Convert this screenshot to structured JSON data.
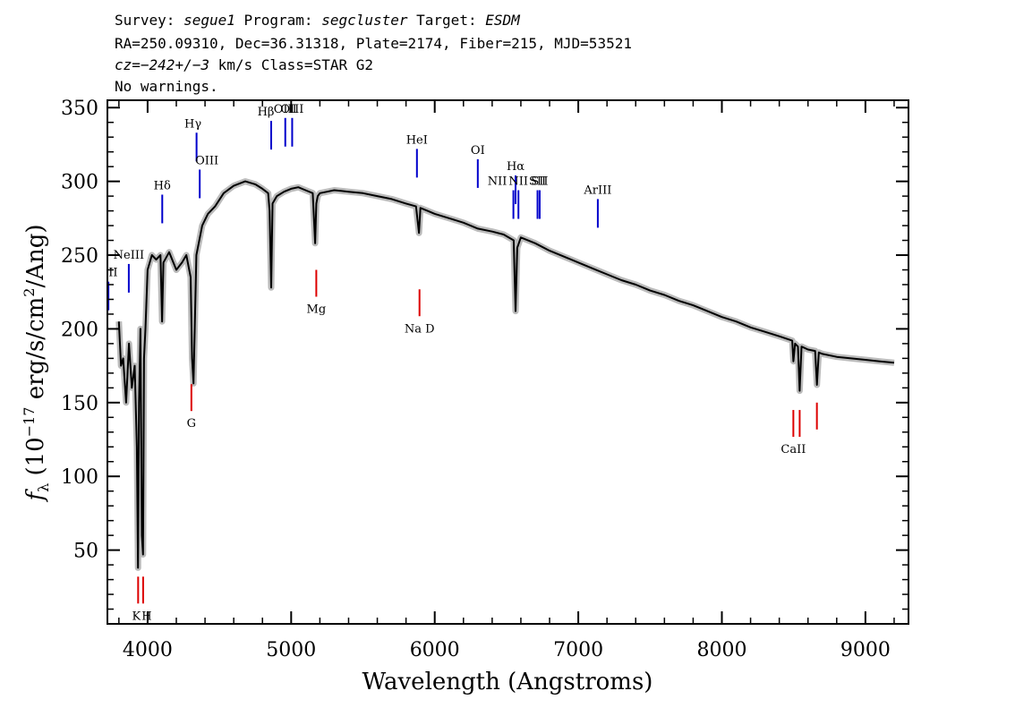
{
  "header": {
    "line1": [
      {
        "text": "Survey: ",
        "italic": false
      },
      {
        "text": "segue1",
        "italic": true
      },
      {
        "text": " Program: ",
        "italic": false
      },
      {
        "text": "segcluster",
        "italic": true
      },
      {
        "text": " Target: ",
        "italic": false
      },
      {
        "text": "ESDM",
        "italic": true
      }
    ],
    "line2": "RA=250.09310, Dec=36.31318, Plate=2174, Fiber=215, MJD=53521",
    "line3": [
      {
        "text": "cz=",
        "italic": true
      },
      {
        "text": "−242+/−3",
        "italic": true
      },
      {
        "text": " km/s Class=STAR G2",
        "italic": false
      }
    ],
    "line4": "No warnings."
  },
  "colors": {
    "emission": "#0000cc",
    "absorption": "#dd0000",
    "spectrum": "#000000",
    "error_band": "#bbbbbb"
  },
  "chart_data": {
    "type": "line",
    "xlabel": "Wavelength (Angstroms)",
    "ylabel_parts": {
      "f": "f",
      "sub": "λ",
      "pre": " (10",
      "exp1": "−17",
      "mid": " erg/s/cm",
      "exp2": "2",
      "post": "/Ang)"
    },
    "xlim": [
      3720,
      9300
    ],
    "ylim": [
      0,
      355
    ],
    "x_ticks": [
      4000,
      5000,
      6000,
      7000,
      8000,
      9000
    ],
    "y_ticks": [
      50,
      100,
      150,
      200,
      250,
      300,
      350
    ],
    "series": [
      {
        "x": [
          3800,
          3815,
          3830,
          3850,
          3870,
          3890,
          3910,
          3925,
          3933,
          3940,
          3950,
          3960,
          3968,
          3975,
          3985,
          4000,
          4030,
          4060,
          4090,
          4101,
          4110,
          4150,
          4200,
          4240,
          4270,
          4300,
          4310,
          4320,
          4340,
          4380,
          4420,
          4470,
          4530,
          4600,
          4680,
          4750,
          4800,
          4840,
          4850,
          4861,
          4870,
          4900,
          4950,
          5000,
          5050,
          5100,
          5150,
          5167,
          5175,
          5185,
          5200,
          5250,
          5300,
          5400,
          5500,
          5600,
          5700,
          5800,
          5870,
          5890,
          5900,
          5950,
          6000,
          6100,
          6200,
          6300,
          6400,
          6480,
          6550,
          6563,
          6575,
          6600,
          6700,
          6800,
          6900,
          7000,
          7100,
          7200,
          7300,
          7400,
          7500,
          7600,
          7700,
          7800,
          7900,
          8000,
          8100,
          8200,
          8300,
          8400,
          8490,
          8498,
          8510,
          8530,
          8542,
          8555,
          8600,
          8650,
          8662,
          8675,
          8700,
          8800,
          8900,
          9000,
          9100,
          9200
        ],
        "y": [
          205,
          175,
          180,
          150,
          190,
          160,
          175,
          120,
          38,
          150,
          200,
          60,
          47,
          180,
          200,
          240,
          250,
          247,
          250,
          205,
          245,
          252,
          240,
          245,
          250,
          235,
          180,
          163,
          250,
          270,
          278,
          283,
          292,
          297,
          300,
          298,
          295,
          292,
          280,
          228,
          285,
          290,
          293,
          295,
          296,
          294,
          292,
          258,
          285,
          290,
          292,
          293,
          294,
          293,
          292,
          290,
          288,
          285,
          283,
          265,
          282,
          280,
          278,
          275,
          272,
          268,
          266,
          264,
          260,
          212,
          255,
          262,
          258,
          253,
          249,
          245,
          241,
          237,
          233,
          230,
          226,
          223,
          219,
          216,
          212,
          208,
          205,
          201,
          198,
          195,
          192,
          178,
          190,
          188,
          158,
          188,
          186,
          185,
          162,
          184,
          183,
          181,
          180,
          179,
          178,
          177
        ]
      }
    ],
    "emission_lines": [
      {
        "label": "OII",
        "x": 3727,
        "y": 232,
        "label_dx": 0
      },
      {
        "label": "NeIII",
        "x": 3869,
        "y": 244,
        "label_dx": 0
      },
      {
        "label": "Hδ",
        "x": 4102,
        "y": 291,
        "label_dx": 0
      },
      {
        "label": "Hγ",
        "x": 4341,
        "y": 333,
        "label_dx": -4
      },
      {
        "label": "OIII",
        "x": 4363,
        "y": 308,
        "label_dx": 8
      },
      {
        "label": "Hβ",
        "x": 4861,
        "y": 341,
        "label_dx": -6
      },
      {
        "label": "OIII",
        "x": 4959,
        "y": 343,
        "label_dx": 0
      },
      {
        "label": "OIII",
        "x": 5007,
        "y": 343,
        "label_dx": 0
      },
      {
        "label": "HeI",
        "x": 5876,
        "y": 322,
        "label_dx": 0
      },
      {
        "label": "OI",
        "x": 6300,
        "y": 315,
        "label_dx": 0
      },
      {
        "label": "NII",
        "x": 6548,
        "y": 294,
        "label_dx": -18
      },
      {
        "label": "Hα",
        "x": 6563,
        "y": 304,
        "label_dx": 0
      },
      {
        "label": "NII",
        "x": 6583,
        "y": 294,
        "label_dx": 0
      },
      {
        "label": "SII",
        "x": 6716,
        "y": 294,
        "label_dx": 0
      },
      {
        "label": "SII",
        "x": 6731,
        "y": 294,
        "label_dx": 0
      },
      {
        "label": "ArIII",
        "x": 7136,
        "y": 288,
        "label_dx": 0
      }
    ],
    "absorption_lines": [
      {
        "label": "K",
        "x": 3934,
        "label_dx": -2
      },
      {
        "label": "H",
        "x": 3969,
        "label_dx": 4
      },
      {
        "label": "G",
        "x": 4305,
        "label_dx": 0
      },
      {
        "label": "Mg",
        "x": 5175,
        "label_dx": 0
      },
      {
        "label": "Na D",
        "x": 5894,
        "label_dx": 0
      },
      {
        "label": "CaII",
        "x": 8498,
        "label_dx": 0
      },
      {
        "label": "CaII",
        "x": 8542,
        "label_dx": 0
      },
      {
        "label": "CaII",
        "x": 8662,
        "label_dx": 0
      }
    ]
  }
}
